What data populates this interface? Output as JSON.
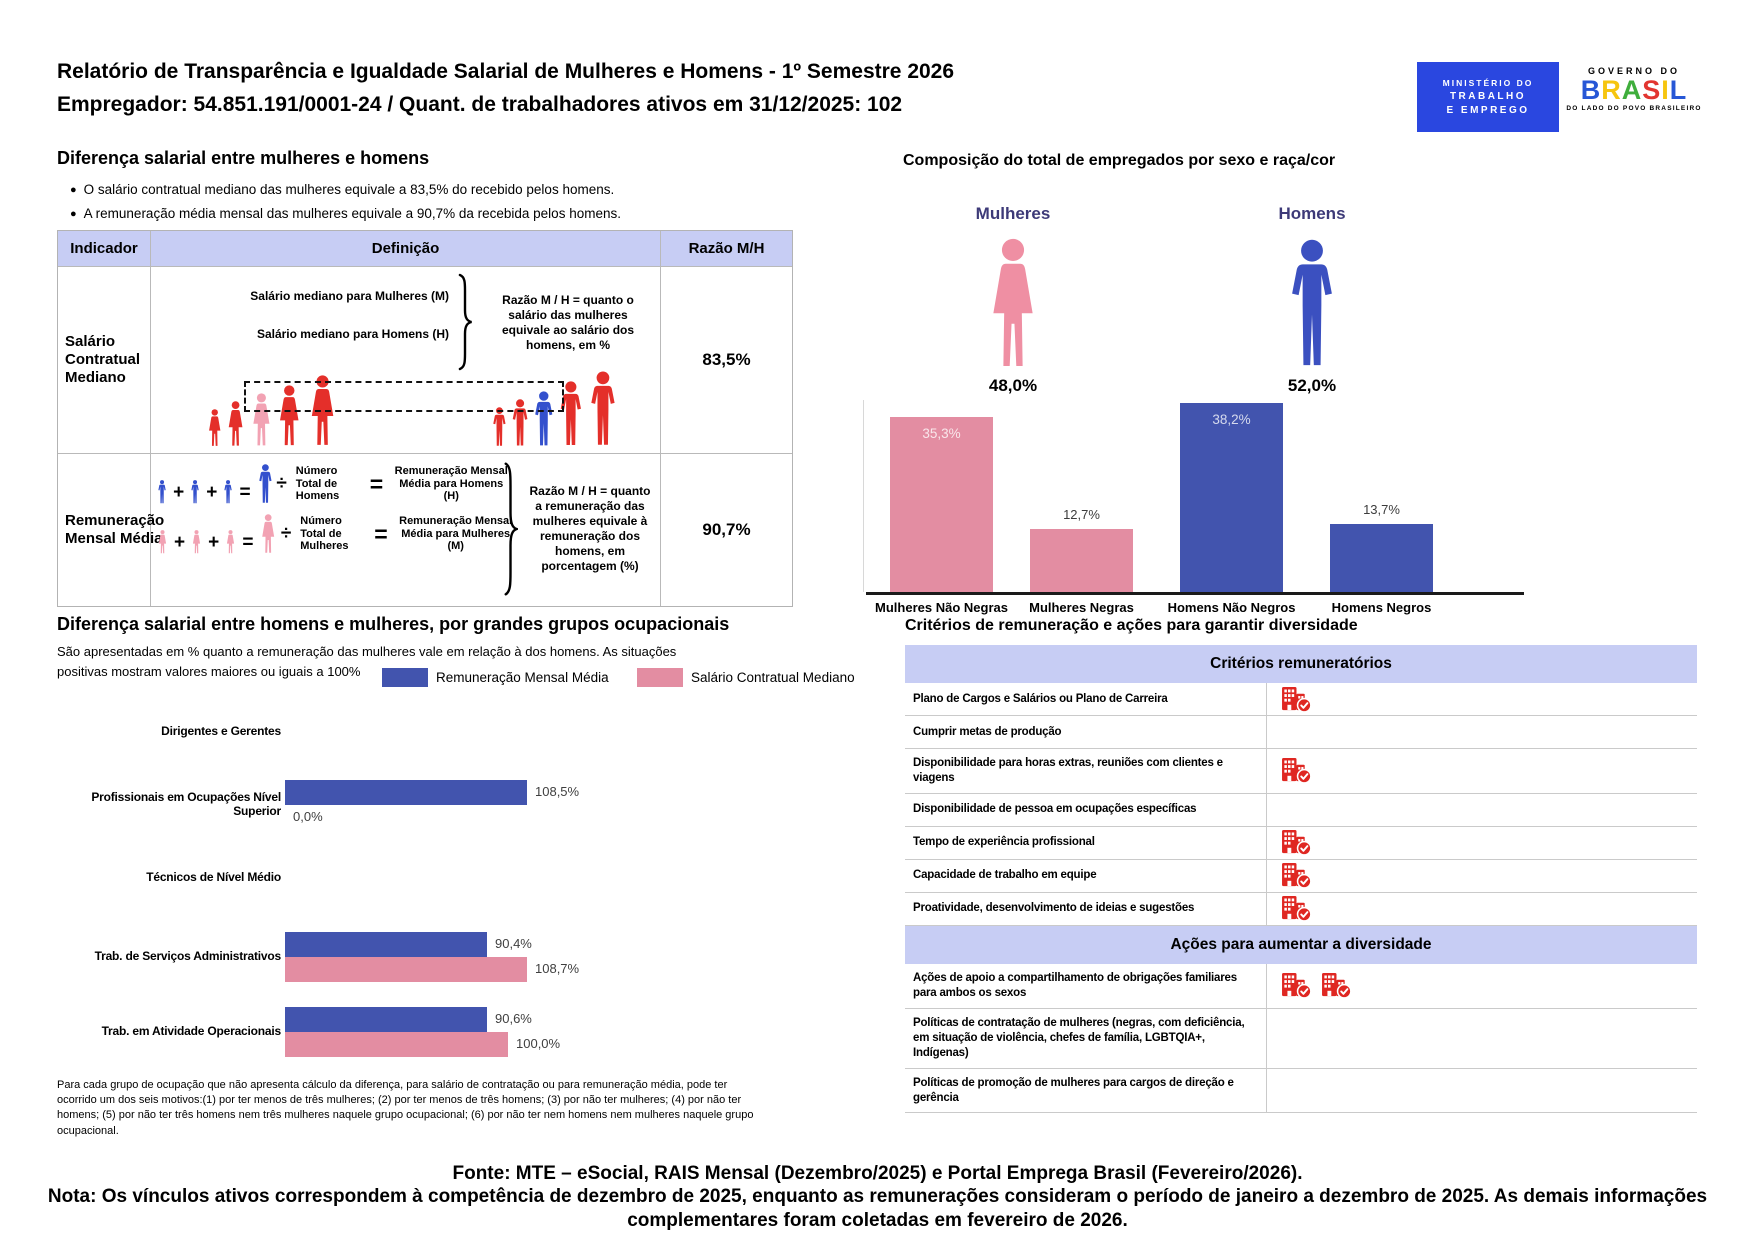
{
  "colors": {
    "bar_blue": "#4254ae",
    "bar_pink": "#e38da2",
    "figure_red": "#e42f2a",
    "figure_median_pink": "#f2a2b3",
    "figure_median_blue": "#3350cd",
    "icon_female_pink": "#ef8fa3",
    "icon_male_blue": "#3b50c0",
    "lavender": "#c7cdf4",
    "navy_label": "#3d3a78",
    "check_icon_red": "#df2722",
    "logo_blue": "#2a47e0"
  },
  "header": {
    "title_line1": "Relatório de Transparência e Igualdade Salarial de Mulheres e Homens - 1º Semestre 2026",
    "title_line2": "Empregador: 54.851.191/0001-24 / Quant. de trabalhadores ativos em 31/12/2025: 102",
    "logo_mte": {
      "line1": "MINISTÉRIO DO",
      "line2": "TRABALHO",
      "line3": "E EMPREGO"
    },
    "logo_brasil": {
      "top": "GOVERNO DO",
      "name": "BRASIL",
      "letter_colors": [
        "#2757d6",
        "#f6c50f",
        "#3fae3c",
        "#e23530",
        "#f6c50f",
        "#2757d6"
      ],
      "bottom": "DO LADO DO POVO BRASILEIRO"
    }
  },
  "salary_gap": {
    "title": "Diferença salarial entre mulheres e homens",
    "bullets": [
      "O salário contratual mediano das mulheres equivale a 83,5% do recebido pelos homens.",
      "A remuneração média mensal das mulheres equivale a 90,7% da recebida pelos homens."
    ],
    "table": {
      "headers": [
        "Indicador",
        "Definição",
        "Razão M/H"
      ],
      "row1": {
        "indicator": "Salário Contratual Mediano",
        "def_line1": "Salário mediano para Mulheres (M)",
        "def_line2": "Salário mediano para Homens (H)",
        "def_note": "Razão M / H = quanto o salário das mulheres equivale ao salário dos homens, em %",
        "ratio": "83,5%"
      },
      "row2": {
        "indicator": "Remuneração Mensal Média",
        "men_divisor": "Número Total de Homens",
        "men_result": "Remuneração Mensal Média para Homens (H)",
        "women_divisor": "Número Total de Mulheres",
        "women_result": "Remuneração Mensal Média para Mulheres (M)",
        "def_note": "Razão M / H = quanto a remuneração das mulheres equivale à remuneração dos homens, em porcentagem (%)",
        "ratio": "90,7%"
      }
    }
  },
  "composition": {
    "title": "Composição do total de empregados por sexo e raça/cor",
    "female_label": "Mulheres",
    "female_pct": "48,0%",
    "male_label": "Homens",
    "male_pct": "52,0%"
  },
  "occupational": {
    "title": "Diferença salarial entre homens e mulheres, por grandes grupos ocupacionais",
    "subtitle": "São apresentadas em % quanto a remuneração das mulheres vale em relação à dos homens. As situações positivas mostram valores maiores ou iguais a 100%",
    "legend": [
      {
        "label": "Remuneração Mensal Média"
      },
      {
        "label": "Salário Contratual Mediano"
      }
    ],
    "footnote": "Para cada grupo de ocupação que não apresenta cálculo da diferença, para salário de contratação ou para remuneração média, pode ter ocorrido um dos seis motivos:(1) por ter menos de três mulheres; (2) por ter menos de três homens; (3) por não ter mulheres; (4) por não ter homens; (5) por não ter três homens nem três mulheres naquele grupo ocupacional; (6) por não ter nem homens nem mulheres naquele grupo ocupacional."
  },
  "criteria": {
    "title": "Critérios de remuneração e ações para garantir diversidade",
    "sections": [
      {
        "header": "Critérios remuneratórios",
        "rows": [
          {
            "label": "Plano de Cargos e Salários ou Plano de Carreira",
            "checks": 1
          },
          {
            "label": "Cumprir metas de produção",
            "checks": 0
          },
          {
            "label": "Disponibilidade para horas extras, reuniões com clientes e viagens",
            "checks": 1
          },
          {
            "label": "Disponibilidade de pessoa em ocupações específicas",
            "checks": 0
          },
          {
            "label": "Tempo de experiência profissional",
            "checks": 1
          },
          {
            "label": "Capacidade de trabalho em equipe",
            "checks": 1
          },
          {
            "label": "Proatividade, desenvolvimento de ideias e sugestões",
            "checks": 1
          }
        ]
      },
      {
        "header": "Ações para aumentar a diversidade",
        "rows": [
          {
            "label": "Ações de apoio a compartilhamento de obrigações familiares para ambos os sexos",
            "checks": 2
          },
          {
            "label": "Políticas de contratação de mulheres (negras, com deficiência, em situação de violência, chefes de família, LGBTQIA+, Indígenas)",
            "checks": 0
          },
          {
            "label": "Políticas de promoção de mulheres para cargos de direção e gerência",
            "checks": 0
          }
        ]
      }
    ]
  },
  "footer": {
    "fonte": "Fonte: MTE – eSocial, RAIS Mensal (Dezembro/2025) e Portal Emprega Brasil (Fevereiro/2026).",
    "nota": "Nota: Os vínculos ativos correspondem à competência de dezembro de 2025, enquanto as remunerações consideram o período de janeiro a dezembro de 2025. As demais informações complementares foram coletadas em fevereiro de 2026."
  },
  "chart_data": [
    {
      "id": "composition-by-sex-race",
      "type": "bar",
      "title": "Composição do total de empregados por sexo e raça/cor",
      "categories": [
        "Mulheres Não Negras",
        "Mulheres Negras",
        "Homens Não Negros",
        "Homens Negros"
      ],
      "values": [
        35.3,
        12.7,
        38.2,
        13.7
      ],
      "value_labels": [
        "35,3%",
        "12,7%",
        "38,2%",
        "13,7%"
      ],
      "colors": [
        "#e38da2",
        "#e38da2",
        "#4254ae",
        "#4254ae"
      ],
      "group_totals": {
        "Mulheres": "48,0%",
        "Homens": "52,0%"
      },
      "ylim": [
        0,
        40
      ],
      "grid": false,
      "legend": "none"
    },
    {
      "id": "salary-ratio-by-occupation",
      "type": "bar-horizontal",
      "title": "Diferença salarial entre homens e mulheres, por grandes grupos ocupacionais",
      "categories": [
        "Dirigentes e Gerentes",
        "Profissionais em Ocupações Nível Superior",
        "Técnicos de Nível Médio",
        "Trab. de Serviços Administrativos",
        "Trab. em Atividade Operacionais"
      ],
      "series": [
        {
          "name": "Remuneração Mensal Média",
          "color": "#4254ae",
          "values": [
            null,
            108.5,
            null,
            90.4,
            90.6
          ],
          "labels": [
            null,
            "108,5%",
            null,
            "90,4%",
            "90,6%"
          ]
        },
        {
          "name": "Salário Contratual Mediano",
          "color": "#e38da2",
          "values": [
            null,
            0.0,
            null,
            108.7,
            100.0
          ],
          "labels": [
            null,
            "0,0%",
            null,
            "108,7%",
            "100,0%"
          ]
        }
      ],
      "xlim": [
        0,
        120
      ],
      "legend_position": "top"
    }
  ]
}
